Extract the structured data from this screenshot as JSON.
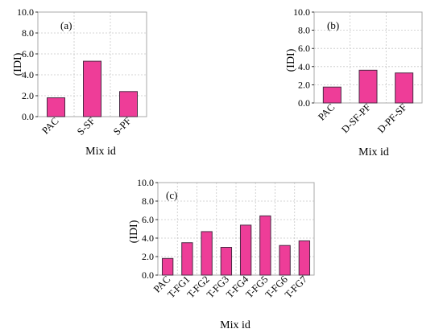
{
  "chart_data": [
    {
      "type": "bar",
      "panel_label": "(a)",
      "categories": [
        "PAC",
        "S-SF",
        "S-PF"
      ],
      "values": [
        1.8,
        5.3,
        2.4
      ],
      "xlabel": "Mix id",
      "ylabel": "(IDI)",
      "ylim": [
        0,
        10
      ],
      "yticks": [
        "0.0",
        "2.0",
        "4.0",
        "6.0",
        "8.0",
        "10.0"
      ],
      "grid": true,
      "bar_color": "#ee3d98",
      "bar_edge": "#4a2a44"
    },
    {
      "type": "bar",
      "panel_label": "(b)",
      "categories": [
        "PAC",
        "D-SF-PF",
        "D-PF-SF"
      ],
      "values": [
        1.75,
        3.6,
        3.3
      ],
      "xlabel": "Mix id",
      "ylabel": "(IDI)",
      "ylim": [
        0,
        10
      ],
      "yticks": [
        "0.0",
        "2.0",
        "4.0",
        "6.0",
        "8.0",
        "10.0"
      ],
      "grid": true,
      "bar_color": "#ee3d98",
      "bar_edge": "#4a2a44"
    },
    {
      "type": "bar",
      "panel_label": "(c)",
      "categories": [
        "PAC",
        "T-FG1",
        "T-FG2",
        "T-FG3",
        "T-FG4",
        "T-FG5",
        "T-FG6",
        "T-FG7"
      ],
      "values": [
        1.8,
        3.5,
        4.7,
        3.0,
        5.4,
        6.4,
        3.2,
        3.7
      ],
      "xlabel": "Mix id",
      "ylabel": "(IDI)",
      "ylim": [
        0,
        10
      ],
      "yticks": [
        "0.0",
        "2.0",
        "4.0",
        "6.0",
        "8.0",
        "10.0"
      ],
      "grid": true,
      "bar_color": "#ee3d98",
      "bar_edge": "#4a2a44"
    }
  ]
}
